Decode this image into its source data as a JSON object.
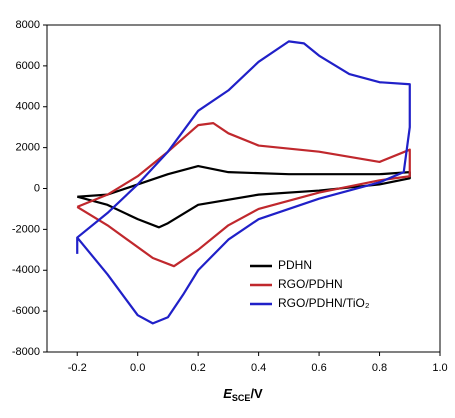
{
  "chart_data": {
    "type": "line",
    "x_label": {
      "main": "E",
      "sub": "SCE",
      "unit": "/V"
    },
    "xlim": [
      -0.3,
      1.0
    ],
    "xticks": [
      -0.2,
      {
        "value": 0,
        "label": "0.0"
      },
      0.2,
      0.4,
      0.6,
      0.8,
      {
        "value": 1,
        "label": "1.0"
      }
    ],
    "ylim": [
      -8000,
      8000
    ],
    "yticks": [
      -8000,
      -6000,
      -4000,
      -2000,
      0,
      2000,
      4000,
      6000,
      8000
    ],
    "legend": "lower right",
    "series": [
      {
        "name": "PDHN",
        "color": "#000000",
        "x": [
          -0.2,
          -0.1,
          0,
          0.1,
          0.2,
          0.3,
          0.5,
          0.8,
          0.9,
          0.9,
          0.8,
          0.6,
          0.4,
          0.2,
          0.1,
          0.07,
          0,
          -0.1,
          -0.2
        ],
        "values": [
          -400,
          -300,
          200,
          700,
          1100,
          800,
          700,
          700,
          800,
          500,
          200,
          -100,
          -300,
          -800,
          -1700,
          -1900,
          -1500,
          -800,
          -400
        ]
      },
      {
        "name": "RGO/PDHN",
        "color": "#c0282d",
        "x": [
          -0.2,
          -0.1,
          0,
          0.1,
          0.2,
          0.25,
          0.3,
          0.4,
          0.6,
          0.8,
          0.9,
          0.9,
          0.8,
          0.6,
          0.4,
          0.3,
          0.2,
          0.12,
          0.05,
          -0.1,
          -0.2
        ],
        "values": [
          -900,
          -300,
          600,
          1800,
          3100,
          3200,
          2700,
          2100,
          1800,
          1300,
          1900,
          600,
          400,
          -200,
          -1000,
          -1800,
          -3000,
          -3800,
          -3400,
          -1800,
          -900
        ]
      },
      {
        "name": "RGO/PDHN/TiO₂",
        "color": "#2020c8",
        "x": [
          -0.2,
          -0.2,
          -0.1,
          0,
          0.1,
          0.2,
          0.3,
          0.4,
          0.5,
          0.55,
          0.6,
          0.7,
          0.8,
          0.9,
          0.9,
          0.88,
          0.8,
          0.6,
          0.4,
          0.3,
          0.2,
          0.15,
          0.1,
          0.05,
          0,
          -0.1,
          -0.2
        ],
        "values": [
          -3200,
          -2400,
          -1200,
          200,
          1800,
          3800,
          4800,
          6200,
          7200,
          7100,
          6500,
          5600,
          5200,
          5100,
          3000,
          800,
          300,
          -500,
          -1500,
          -2500,
          -4000,
          -5200,
          -6300,
          -6600,
          -6200,
          -4200,
          -2400
        ]
      }
    ]
  }
}
